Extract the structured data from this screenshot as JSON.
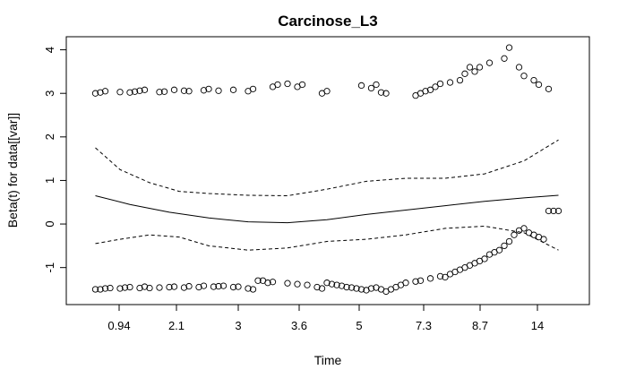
{
  "chart_data": {
    "type": "scatter",
    "title": "Carcinose_L3",
    "xlabel": "Time",
    "ylabel": "Beta(t) for data[[var]]",
    "xticks": [
      "0.94",
      "2.1",
      "3",
      "3.6",
      "5",
      "7.3",
      "8.7",
      "14"
    ],
    "yticks": [
      "-1",
      "0",
      "1",
      "2",
      "3",
      "4"
    ],
    "ylim": [
      -1.85,
      4.3
    ],
    "xlim": [
      0,
      1
    ],
    "grid": false,
    "series": [
      {
        "style": "solid-line",
        "x": [
          0.03,
          0.1,
          0.18,
          0.26,
          0.34,
          0.42,
          0.5,
          0.58,
          0.66,
          0.74,
          0.82,
          0.9,
          0.97
        ],
        "values": [
          0.65,
          0.45,
          0.27,
          0.14,
          0.05,
          0.03,
          0.1,
          0.22,
          0.32,
          0.42,
          0.52,
          0.6,
          0.66
        ]
      },
      {
        "style": "dashed-upper",
        "x": [
          0.03,
          0.08,
          0.14,
          0.2,
          0.26,
          0.34,
          0.42,
          0.5,
          0.58,
          0.66,
          0.74,
          0.82,
          0.9,
          0.97
        ],
        "values": [
          1.75,
          1.25,
          0.95,
          0.75,
          0.7,
          0.66,
          0.65,
          0.8,
          0.98,
          1.05,
          1.05,
          1.15,
          1.45,
          1.93
        ]
      },
      {
        "style": "dashed-lower",
        "x": [
          0.03,
          0.08,
          0.14,
          0.2,
          0.26,
          0.34,
          0.42,
          0.5,
          0.58,
          0.66,
          0.74,
          0.82,
          0.9,
          0.97
        ],
        "values": [
          -0.45,
          -0.35,
          -0.25,
          -0.3,
          -0.5,
          -0.6,
          -0.55,
          -0.4,
          -0.35,
          -0.25,
          -0.1,
          -0.05,
          -0.2,
          -0.6
        ]
      },
      {
        "style": "points",
        "x": [
          0.03,
          0.04,
          0.05,
          0.08,
          0.1,
          0.11,
          0.12,
          0.13,
          0.16,
          0.17,
          0.19,
          0.21,
          0.22,
          0.25,
          0.26,
          0.28,
          0.31,
          0.34,
          0.35,
          0.39,
          0.4,
          0.42,
          0.44,
          0.45,
          0.49,
          0.5,
          0.57,
          0.59,
          0.6,
          0.61,
          0.62,
          0.68,
          0.69,
          0.7,
          0.71,
          0.72,
          0.73,
          0.75,
          0.77,
          0.78,
          0.79,
          0.8,
          0.81,
          0.83,
          0.86,
          0.87,
          0.89,
          0.9,
          0.92,
          0.93,
          0.95,
          0.03,
          0.04,
          0.05,
          0.06,
          0.08,
          0.09,
          0.1,
          0.12,
          0.13,
          0.14,
          0.16,
          0.18,
          0.19,
          0.21,
          0.22,
          0.24,
          0.25,
          0.27,
          0.28,
          0.29,
          0.31,
          0.32,
          0.34,
          0.35,
          0.36,
          0.37,
          0.38,
          0.39,
          0.42,
          0.44,
          0.46,
          0.48,
          0.49,
          0.5,
          0.51,
          0.52,
          0.53,
          0.54,
          0.55,
          0.56,
          0.57,
          0.58,
          0.59,
          0.6,
          0.61,
          0.62,
          0.63,
          0.64,
          0.65,
          0.66,
          0.68,
          0.69,
          0.71,
          0.73,
          0.74,
          0.75,
          0.76,
          0.77,
          0.78,
          0.79,
          0.8,
          0.81,
          0.82,
          0.83,
          0.84,
          0.85,
          0.86,
          0.87,
          0.88,
          0.89,
          0.9,
          0.91,
          0.92,
          0.93,
          0.94,
          0.95,
          0.96,
          0.97
        ],
        "values": [
          3.0,
          3.02,
          3.05,
          3.03,
          3.02,
          3.04,
          3.06,
          3.08,
          3.03,
          3.04,
          3.08,
          3.06,
          3.05,
          3.07,
          3.1,
          3.06,
          3.08,
          3.05,
          3.1,
          3.15,
          3.2,
          3.22,
          3.15,
          3.2,
          3.0,
          3.05,
          3.18,
          3.12,
          3.2,
          3.02,
          3.0,
          2.95,
          3.0,
          3.05,
          3.08,
          3.15,
          3.22,
          3.25,
          3.3,
          3.45,
          3.6,
          3.5,
          3.6,
          3.7,
          3.8,
          4.05,
          3.6,
          3.4,
          3.3,
          3.2,
          3.1,
          -1.5,
          -1.5,
          -1.48,
          -1.47,
          -1.48,
          -1.46,
          -1.45,
          -1.47,
          -1.44,
          -1.47,
          -1.46,
          -1.45,
          -1.44,
          -1.46,
          -1.43,
          -1.45,
          -1.42,
          -1.44,
          -1.43,
          -1.42,
          -1.45,
          -1.44,
          -1.48,
          -1.5,
          -1.3,
          -1.3,
          -1.35,
          -1.33,
          -1.36,
          -1.38,
          -1.4,
          -1.45,
          -1.48,
          -1.35,
          -1.38,
          -1.4,
          -1.42,
          -1.45,
          -1.46,
          -1.48,
          -1.5,
          -1.52,
          -1.48,
          -1.46,
          -1.5,
          -1.55,
          -1.5,
          -1.45,
          -1.4,
          -1.35,
          -1.32,
          -1.3,
          -1.25,
          -1.2,
          -1.22,
          -1.15,
          -1.1,
          -1.05,
          -1.0,
          -0.95,
          -0.9,
          -0.85,
          -0.8,
          -0.7,
          -0.65,
          -0.6,
          -0.5,
          -0.4,
          -0.25,
          -0.15,
          -0.1,
          -0.2,
          -0.25,
          -0.3,
          -0.35,
          0.3,
          0.3,
          0.3
        ]
      }
    ]
  }
}
